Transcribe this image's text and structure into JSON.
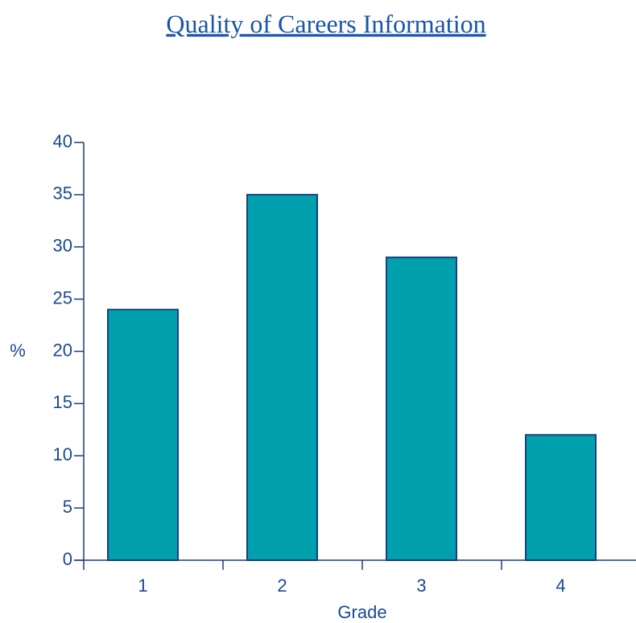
{
  "chart_data": {
    "type": "bar",
    "title": "Quality of Careers Information",
    "x_label": "Grade",
    "y_label": "%",
    "categories": [
      "1",
      "2",
      "3",
      "4"
    ],
    "values": [
      24,
      35,
      29,
      12
    ],
    "color": "#00a0ae",
    "ylim": [
      0,
      40
    ],
    "yticks": [
      0,
      5,
      10,
      15,
      20,
      25,
      30,
      35,
      40
    ],
    "grid": false
  }
}
